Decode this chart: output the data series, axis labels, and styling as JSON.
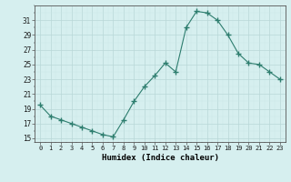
{
  "x": [
    0,
    1,
    2,
    3,
    4,
    5,
    6,
    7,
    8,
    9,
    10,
    11,
    12,
    13,
    14,
    15,
    16,
    17,
    18,
    19,
    20,
    21,
    22,
    23
  ],
  "y": [
    19.5,
    18.0,
    17.5,
    17.0,
    16.5,
    16.0,
    15.5,
    15.2,
    17.5,
    20.0,
    22.0,
    23.5,
    25.2,
    24.0,
    30.0,
    32.2,
    32.0,
    31.0,
    29.0,
    26.5,
    25.2,
    25.0,
    24.0,
    23.0
  ],
  "xlabel": "Humidex (Indice chaleur)",
  "xlim": [
    -0.5,
    23.5
  ],
  "ylim": [
    14.5,
    33.0
  ],
  "yticks": [
    15,
    17,
    19,
    21,
    23,
    25,
    27,
    29,
    31
  ],
  "xticks": [
    0,
    1,
    2,
    3,
    4,
    5,
    6,
    7,
    8,
    9,
    10,
    11,
    12,
    13,
    14,
    15,
    16,
    17,
    18,
    19,
    20,
    21,
    22,
    23
  ],
  "line_color": "#2d7d6e",
  "marker": "+",
  "marker_size": 4,
  "bg_color": "#d6efef",
  "grid_color": "#b8d8d8",
  "grid_minor_color": "#cce6e6"
}
